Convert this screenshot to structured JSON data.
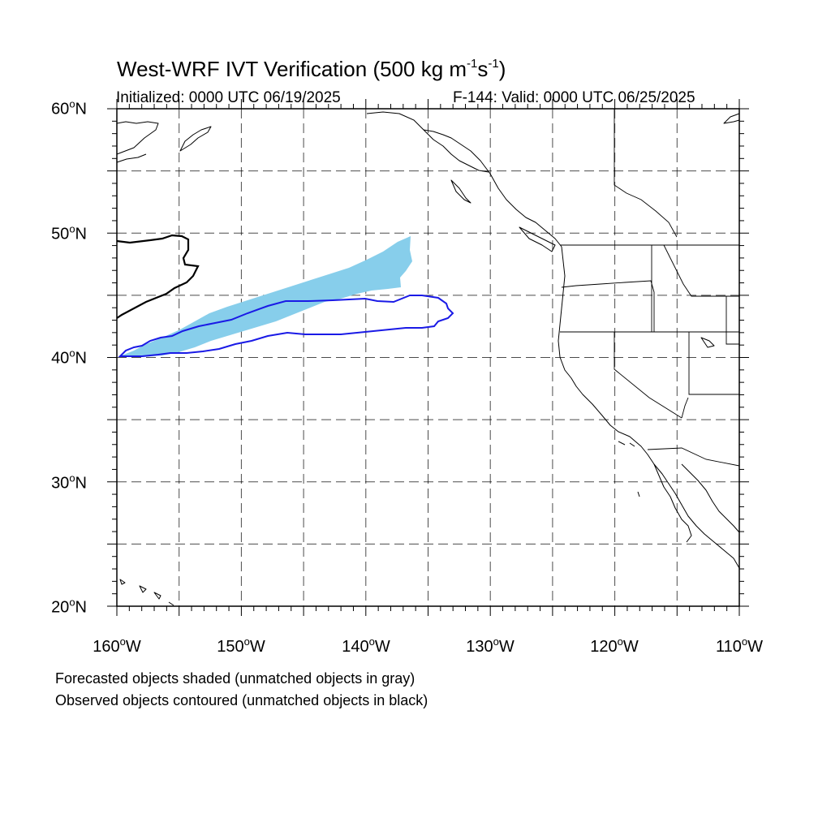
{
  "title": {
    "main": "West-WRF IVT Verification (500 kg m",
    "exp1": "-1",
    "mid": "s",
    "exp2": "-1",
    "end": ")"
  },
  "initialized": "Initialized: 0000 UTC 06/19/2025",
  "valid": "F-144: Valid: 0000 UTC 06/25/2025",
  "lat_labels": [
    "60",
    "50",
    "40",
    "30",
    "20"
  ],
  "lat_suffix": "N",
  "lon_labels": [
    "160",
    "150",
    "140",
    "130",
    "120",
    "110"
  ],
  "lon_suffix": "W",
  "degree_symbol": "o",
  "notes": [
    "Forecasted objects shaded (unmatched objects in gray)",
    "Observed objects contoured (unmatched objects in black)"
  ],
  "colors": {
    "forecast_fill": "#87ceeb",
    "observed_matched": "#1a1ae6",
    "observed_unmatched": "#000000",
    "grid": "#000000"
  },
  "map_extent": {
    "lon": [
      -160,
      -110
    ],
    "lat": [
      20,
      60
    ]
  }
}
